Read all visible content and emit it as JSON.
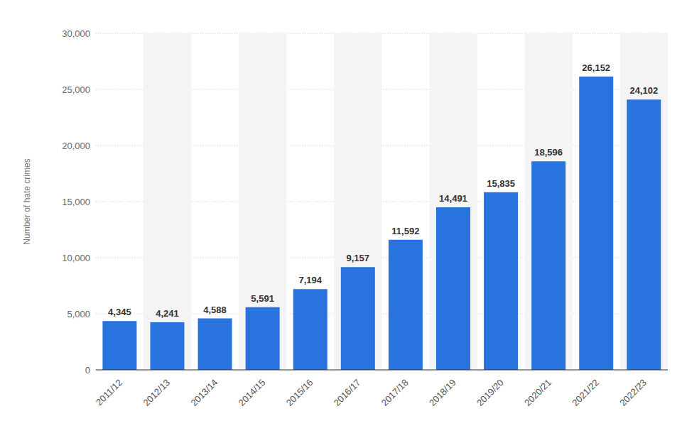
{
  "chart_data": {
    "type": "bar",
    "y_label": "Number of hate crimes",
    "categories": [
      "2011/12",
      "2012/13",
      "2013/14",
      "2014/15",
      "2015/16",
      "2016/17",
      "2017/18",
      "2018/19",
      "2019/20",
      "2020/21",
      "2021/22",
      "2022/23"
    ],
    "values": [
      4345,
      4241,
      4588,
      5591,
      7194,
      9157,
      11592,
      14491,
      15835,
      18596,
      26152,
      24102
    ],
    "value_labels": [
      "4,345",
      "4,241",
      "4,588",
      "5,591",
      "7,194",
      "9,157",
      "11,592",
      "14,491",
      "15,835",
      "18,596",
      "26,152",
      "24,102"
    ],
    "color": "#2873de",
    "ylim": [
      0,
      30000
    ],
    "yticks": [
      0,
      {
        "value": 5000,
        "label": "5,000"
      },
      {
        "value": 10000,
        "label": "10,000"
      },
      {
        "value": 15000,
        "label": "15,000"
      },
      {
        "value": 20000,
        "label": "20,000"
      },
      {
        "value": 25000,
        "label": "25,000"
      },
      {
        "value": 30000,
        "label": "30,000"
      }
    ],
    "grid": true,
    "data_labels": true
  }
}
